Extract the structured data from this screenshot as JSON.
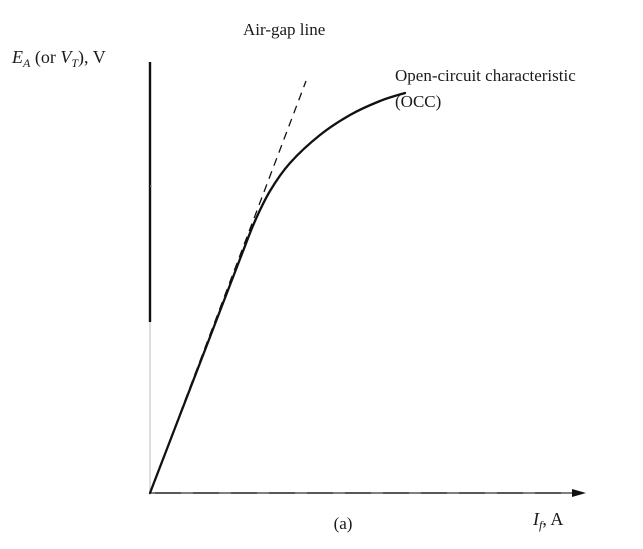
{
  "chart_data": {
    "type": "line",
    "title": "",
    "ylabel": {
      "parts": [
        {
          "text": "E",
          "style": "italic"
        },
        {
          "text": "A",
          "style": "italic-sub"
        },
        {
          "text": " (or ",
          "style": "normal"
        },
        {
          "text": "V",
          "style": "italic"
        },
        {
          "text": "T",
          "style": "italic-sub"
        },
        {
          "text": "), V",
          "style": "normal"
        }
      ]
    },
    "xlabel": {
      "parts": [
        {
          "text": "I",
          "style": "italic"
        },
        {
          "text": "f",
          "style": "italic-sub"
        },
        {
          "text": ", A",
          "style": "normal"
        }
      ]
    },
    "caption": "(a)",
    "series": [
      {
        "name": "Air-gap line",
        "style": "dashed",
        "annotation": {
          "lines": [
            "Air-gap line"
          ]
        },
        "points": [
          [
            0,
            0
          ],
          [
            1.56,
            4.12
          ]
        ]
      },
      {
        "name": "Open-circuit characteristic",
        "style": "solid",
        "annotation": {
          "lines": [
            "Open-circuit characteristic",
            "(OCC)"
          ]
        },
        "points": [
          [
            0,
            0
          ],
          [
            0.3,
            0.78
          ],
          [
            0.6,
            1.56
          ],
          [
            0.9,
            2.34
          ],
          [
            1.05,
            2.72
          ],
          [
            1.2,
            3.02
          ],
          [
            1.4,
            3.3
          ],
          [
            1.7,
            3.58
          ],
          [
            2.0,
            3.78
          ],
          [
            2.3,
            3.92
          ],
          [
            2.55,
            4.0
          ]
        ]
      }
    ],
    "xlim": [
      0,
      4.5
    ],
    "ylim": [
      0,
      4.6
    ],
    "grid": false,
    "ticks": "none"
  }
}
